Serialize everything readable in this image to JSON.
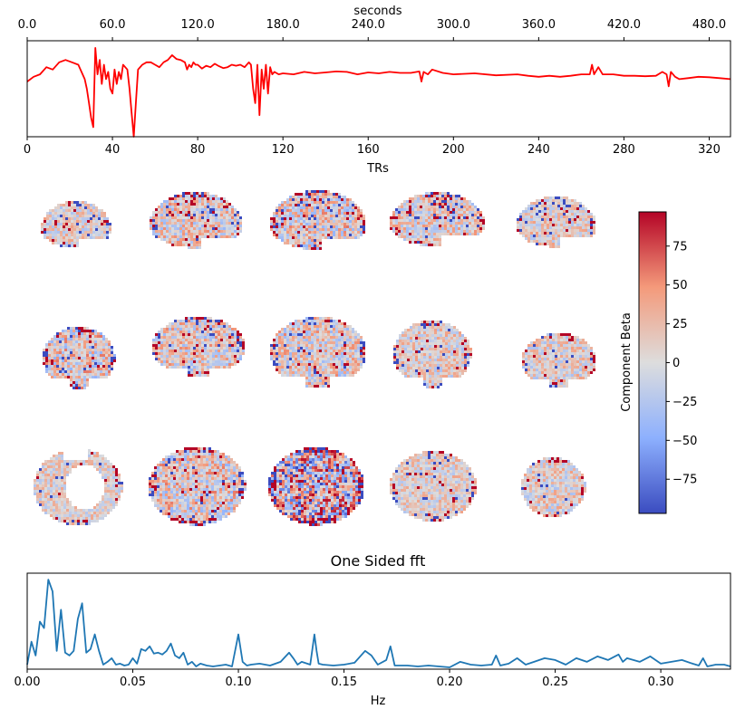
{
  "chart_data": [
    {
      "type": "line",
      "name": "timeseries",
      "title": "",
      "xlabel": "TRs",
      "xlabel_top": "seconds",
      "xlim": [
        0,
        330
      ],
      "xticks": [
        0,
        40,
        80,
        120,
        160,
        200,
        240,
        280,
        320
      ],
      "xtick_labels": [
        "0",
        "40",
        "80",
        "120",
        "160",
        "200",
        "240",
        "280",
        "320"
      ],
      "top_xlim": [
        0,
        495
      ],
      "top_xticks": [
        0,
        60,
        120,
        180,
        240,
        300,
        360,
        420,
        480
      ],
      "top_xtick_labels": [
        "0.0",
        "60.0",
        "120.0",
        "180.0",
        "240.0",
        "300.0",
        "360.0",
        "420.0",
        "480.0"
      ],
      "ylim": [
        -1.0,
        1.0
      ],
      "color": "#ff0000",
      "x": [
        0,
        3,
        6,
        9,
        12,
        15,
        18,
        21,
        24,
        27,
        28,
        29,
        30,
        31,
        32,
        33,
        34,
        35,
        36,
        37,
        38,
        39,
        40,
        41,
        42,
        43,
        44,
        45,
        46,
        47,
        48,
        49,
        50,
        51,
        52,
        54,
        56,
        58,
        60,
        62,
        64,
        66,
        68,
        70,
        72,
        74,
        75,
        76,
        77,
        78,
        79,
        80,
        82,
        84,
        86,
        88,
        90,
        92,
        94,
        96,
        98,
        100,
        102,
        104,
        105,
        106,
        107,
        108,
        109,
        110,
        111,
        112,
        113,
        114,
        115,
        116,
        118,
        120,
        125,
        130,
        135,
        140,
        145,
        150,
        155,
        160,
        165,
        170,
        175,
        180,
        184,
        185,
        186,
        188,
        190,
        195,
        200,
        210,
        220,
        230,
        235,
        240,
        245,
        250,
        255,
        260,
        264,
        265,
        266,
        268,
        270,
        275,
        280,
        285,
        290,
        295,
        298,
        300,
        301,
        302,
        304,
        306,
        310,
        315,
        320,
        325,
        330
      ],
      "y": [
        0.15,
        0.25,
        0.3,
        0.45,
        0.4,
        0.55,
        0.6,
        0.55,
        0.5,
        0.2,
        0.0,
        -0.3,
        -0.6,
        -0.8,
        0.85,
        0.3,
        0.6,
        0.1,
        0.5,
        0.2,
        0.35,
        0.0,
        -0.1,
        0.4,
        0.1,
        0.35,
        0.2,
        0.5,
        0.45,
        0.4,
        0.0,
        -0.5,
        -1.0,
        -0.3,
        0.4,
        0.5,
        0.55,
        0.55,
        0.5,
        0.45,
        0.55,
        0.6,
        0.7,
        0.62,
        0.6,
        0.55,
        0.4,
        0.5,
        0.45,
        0.55,
        0.5,
        0.5,
        0.42,
        0.48,
        0.45,
        0.52,
        0.47,
        0.43,
        0.45,
        0.5,
        0.48,
        0.5,
        0.45,
        0.55,
        0.5,
        0.0,
        -0.3,
        0.5,
        -0.55,
        0.4,
        0.0,
        0.5,
        -0.1,
        0.45,
        0.3,
        0.35,
        0.3,
        0.32,
        0.3,
        0.35,
        0.32,
        0.34,
        0.36,
        0.35,
        0.3,
        0.34,
        0.32,
        0.35,
        0.33,
        0.33,
        0.36,
        0.15,
        0.35,
        0.3,
        0.4,
        0.33,
        0.3,
        0.32,
        0.28,
        0.3,
        0.27,
        0.25,
        0.27,
        0.25,
        0.27,
        0.3,
        0.3,
        0.5,
        0.3,
        0.45,
        0.3,
        0.3,
        0.27,
        0.27,
        0.26,
        0.27,
        0.35,
        0.3,
        0.05,
        0.35,
        0.25,
        0.2,
        0.22,
        0.25,
        0.24,
        0.22,
        0.2
      ]
    },
    {
      "type": "heatmap",
      "name": "component-maps",
      "rows": [
        "sagittal",
        "coronal",
        "axial"
      ],
      "colorbar_label": "Component Beta",
      "colorbar_range": [
        -97,
        97
      ],
      "colorbar_ticks": [
        75,
        50,
        25,
        0,
        -25,
        -50,
        -75
      ],
      "colorbar_tick_labels": [
        "75",
        "50",
        "25",
        "0",
        "−25",
        "−50",
        "−75"
      ],
      "colormap": "coolwarm"
    },
    {
      "type": "line",
      "name": "spectrum",
      "title": "One Sided fft",
      "xlabel": "Hz",
      "xlim": [
        0,
        0.333
      ],
      "xticks": [
        0.0,
        0.05,
        0.1,
        0.15,
        0.2,
        0.25,
        0.3
      ],
      "xtick_labels": [
        "0.00",
        "0.05",
        "0.10",
        "0.15",
        "0.20",
        "0.25",
        "0.30"
      ],
      "ylim": [
        0,
        1.05
      ],
      "color": "#1f77b4",
      "x": [
        0.0,
        0.002,
        0.004,
        0.006,
        0.008,
        0.01,
        0.012,
        0.014,
        0.016,
        0.018,
        0.02,
        0.022,
        0.024,
        0.026,
        0.028,
        0.03,
        0.032,
        0.034,
        0.036,
        0.038,
        0.04,
        0.042,
        0.044,
        0.046,
        0.048,
        0.05,
        0.052,
        0.054,
        0.056,
        0.058,
        0.06,
        0.062,
        0.064,
        0.066,
        0.068,
        0.07,
        0.072,
        0.074,
        0.076,
        0.078,
        0.08,
        0.082,
        0.085,
        0.088,
        0.091,
        0.094,
        0.097,
        0.1,
        0.102,
        0.104,
        0.106,
        0.11,
        0.115,
        0.12,
        0.124,
        0.126,
        0.128,
        0.13,
        0.134,
        0.136,
        0.137,
        0.138,
        0.14,
        0.145,
        0.15,
        0.155,
        0.16,
        0.163,
        0.166,
        0.17,
        0.172,
        0.174,
        0.18,
        0.185,
        0.19,
        0.195,
        0.2,
        0.205,
        0.21,
        0.215,
        0.22,
        0.222,
        0.224,
        0.228,
        0.232,
        0.236,
        0.24,
        0.245,
        0.25,
        0.255,
        0.26,
        0.265,
        0.27,
        0.275,
        0.28,
        0.282,
        0.284,
        0.29,
        0.295,
        0.3,
        0.305,
        0.31,
        0.315,
        0.318,
        0.32,
        0.322,
        0.326,
        0.33,
        0.333
      ],
      "y": [
        0.05,
        0.3,
        0.15,
        0.52,
        0.45,
        0.98,
        0.85,
        0.2,
        0.65,
        0.18,
        0.15,
        0.2,
        0.55,
        0.72,
        0.18,
        0.22,
        0.38,
        0.2,
        0.05,
        0.08,
        0.12,
        0.05,
        0.06,
        0.04,
        0.05,
        0.12,
        0.06,
        0.22,
        0.2,
        0.25,
        0.17,
        0.18,
        0.16,
        0.2,
        0.28,
        0.15,
        0.12,
        0.18,
        0.05,
        0.08,
        0.03,
        0.06,
        0.04,
        0.03,
        0.04,
        0.05,
        0.03,
        0.38,
        0.08,
        0.04,
        0.05,
        0.06,
        0.04,
        0.08,
        0.18,
        0.12,
        0.05,
        0.08,
        0.05,
        0.38,
        0.2,
        0.06,
        0.05,
        0.04,
        0.05,
        0.07,
        0.2,
        0.15,
        0.05,
        0.1,
        0.25,
        0.04,
        0.04,
        0.03,
        0.04,
        0.03,
        0.02,
        0.08,
        0.05,
        0.04,
        0.05,
        0.15,
        0.04,
        0.06,
        0.12,
        0.05,
        0.08,
        0.12,
        0.1,
        0.05,
        0.12,
        0.08,
        0.14,
        0.1,
        0.16,
        0.08,
        0.12,
        0.08,
        0.14,
        0.06,
        0.08,
        0.1,
        0.06,
        0.04,
        0.12,
        0.03,
        0.05,
        0.05,
        0.03
      ]
    }
  ]
}
